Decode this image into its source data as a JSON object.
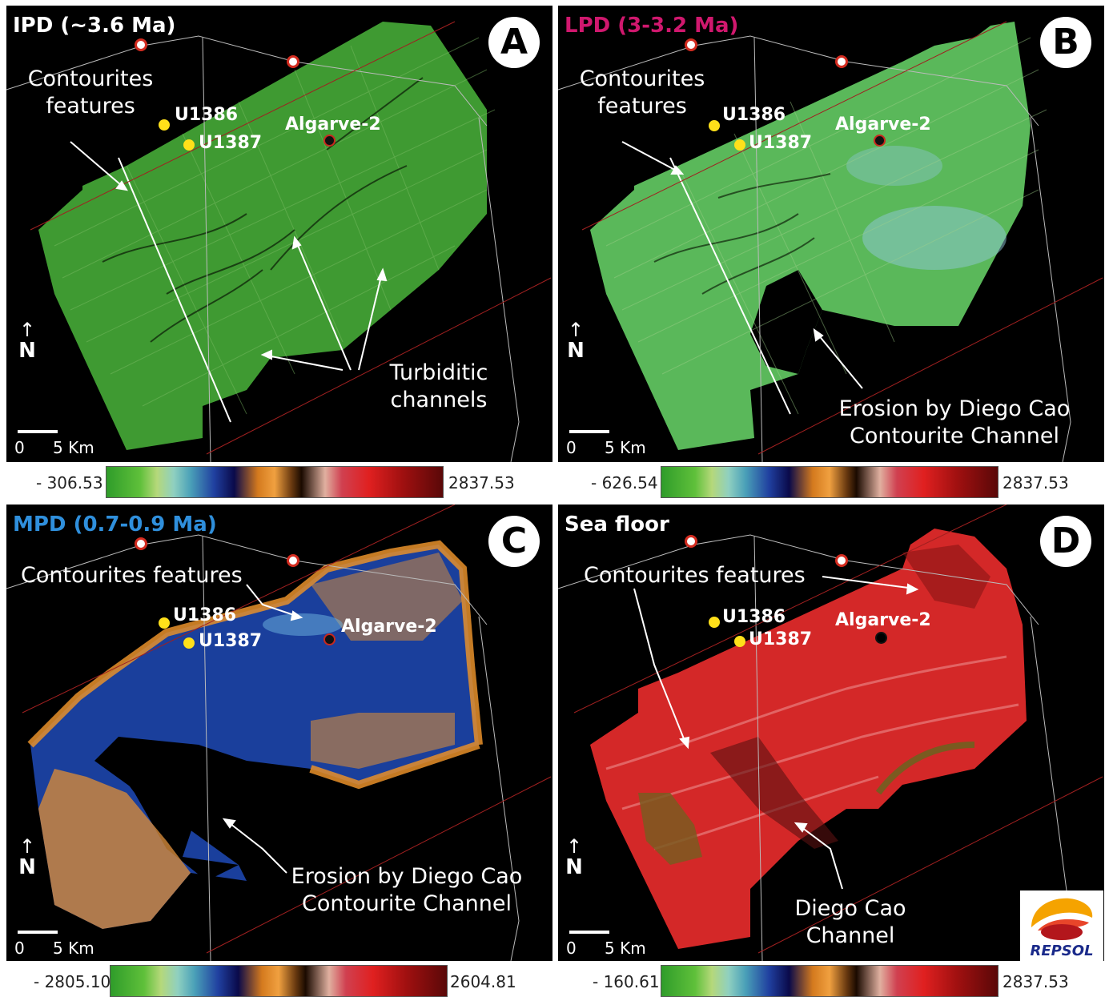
{
  "panels": [
    {
      "title": "IPD (~3.6 Ma)",
      "title_color": "#ffffff",
      "letter": "A",
      "contourites_line1": "Contourites",
      "contourites_line2": "features",
      "well1": "U1386",
      "well2": "U1387",
      "well3": "Algarve-2",
      "turbiditic_line1": "Turbiditic",
      "turbiditic_line2": "channels",
      "north": "N",
      "scale_zero": "0",
      "scale_km": "5 Km",
      "colorbar_min": "- 306.53",
      "colorbar_max": "2837.53",
      "fill_color": "#3f9a32"
    },
    {
      "title": "LPD (3-3.2 Ma)",
      "title_color": "#d0186e",
      "letter": "B",
      "contourites_line1": "Contourites",
      "contourites_line2": "features",
      "well1": "U1386",
      "well2": "U1387",
      "well3": "Algarve-2",
      "erosion_line1": "Erosion by Diego Cao",
      "erosion_line2": "Contourite Channel",
      "north": "N",
      "scale_zero": "0",
      "scale_km": "5 Km",
      "colorbar_min": "- 626.54",
      "colorbar_max": "2837.53",
      "fill_color": "#5ab85a"
    },
    {
      "title": "MPD (0.7-0.9 Ma)",
      "title_color": "#2f8fdc",
      "letter": "C",
      "contourites_line1": "Contourites features",
      "well1": "U1386",
      "well2": "U1387",
      "well3": "Algarve-2",
      "erosion_line1": "Erosion by Diego Cao",
      "erosion_line2": "Contourite Channel",
      "north": "N",
      "scale_zero": "0",
      "scale_km": "5 Km",
      "colorbar_min": "- 2805.10",
      "colorbar_max": "2604.81",
      "fill_color": "#1a3f9c",
      "edge_color": "#e8902a"
    },
    {
      "title": "Sea floor",
      "title_color": "#ffffff",
      "letter": "D",
      "contourites_line1": "Contourites features",
      "well1": "U1386",
      "well2": "U1387",
      "well3": "Algarve-2",
      "diego_line1": "Diego Cao",
      "diego_line2": "Channel",
      "north": "N",
      "scale_zero": "0",
      "scale_km": "5 Km",
      "colorbar_min": "- 160.61",
      "colorbar_max": "2837.53",
      "fill_color": "#d42828"
    }
  ],
  "logo": {
    "text": "REPSOL",
    "colors": [
      "#f5a300",
      "#e8452a",
      "#b3161c"
    ]
  }
}
